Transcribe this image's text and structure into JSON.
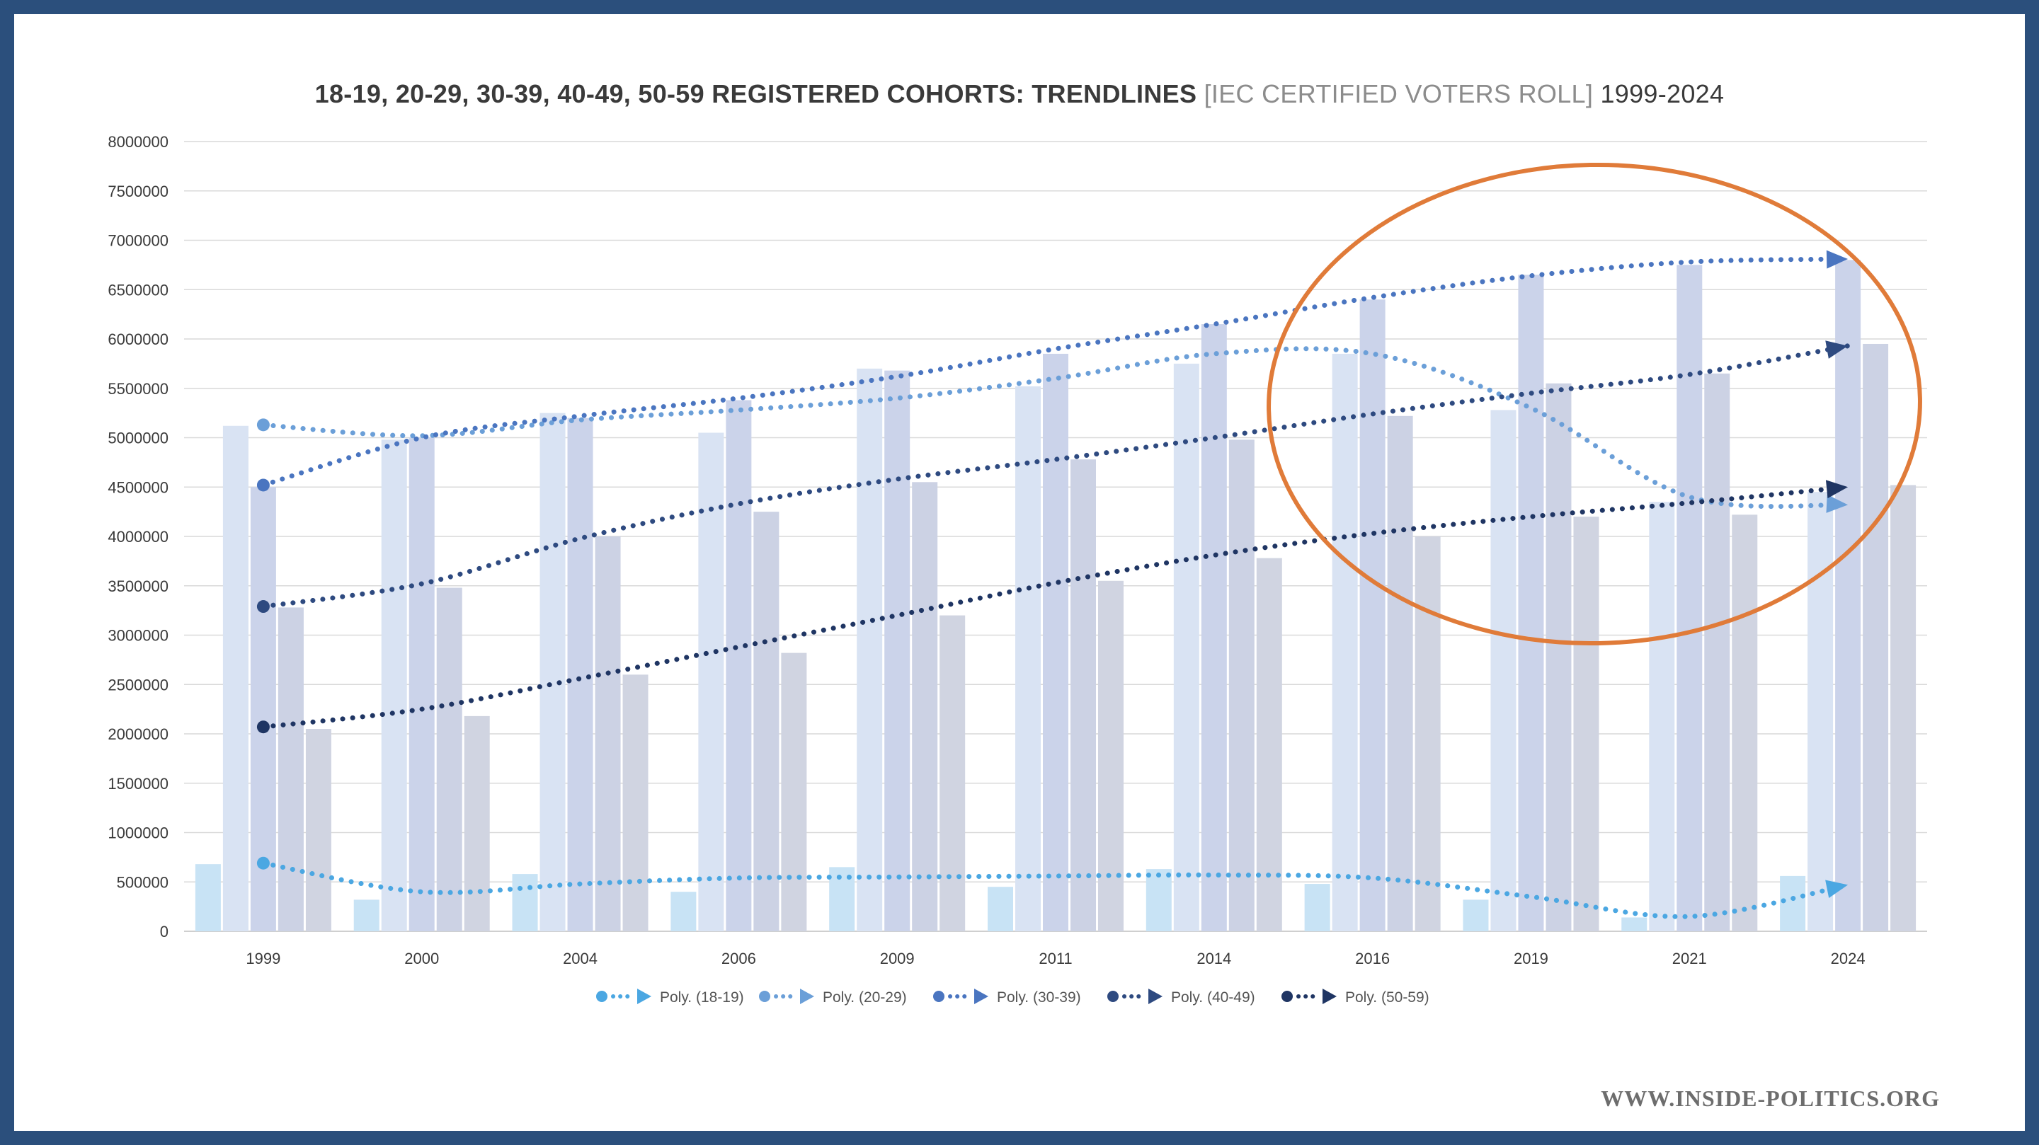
{
  "chart_data": {
    "type": "bar",
    "title": "18-19, 20-29, 30-39, 40-49, 50-59 REGISTERED COHORTS: TRENDLINES",
    "title_sub": "[IEC CERTIFIED VOTERS ROLL]",
    "title_tail": "1999-2024",
    "categories": [
      "1999",
      "2000",
      "2004",
      "2006",
      "2009",
      "2011",
      "2014",
      "2016",
      "2019",
      "2021",
      "2024"
    ],
    "ylim": [
      0,
      8000000
    ],
    "yticks": [
      "0",
      "500000",
      "1000000",
      "1500000",
      "2000000",
      "2500000",
      "3000000",
      "3500000",
      "4000000",
      "4500000",
      "5000000",
      "5500000",
      "6000000",
      "6500000",
      "7000000",
      "7500000",
      "8000000"
    ],
    "grid": true,
    "legend_position": "bottom",
    "series": [
      {
        "key": "18-19",
        "values": [
          680000,
          320000,
          580000,
          400000,
          650000,
          450000,
          630000,
          480000,
          320000,
          140000,
          560000
        ],
        "color": "#c8e3f5"
      },
      {
        "key": "20-29",
        "values": [
          5120000,
          4980000,
          5250000,
          5050000,
          5700000,
          5520000,
          5750000,
          5850000,
          5280000,
          4350000,
          4450000
        ],
        "color": "#d9e3f3"
      },
      {
        "key": "30-39",
        "values": [
          4500000,
          5000000,
          5200000,
          5380000,
          5680000,
          5850000,
          6150000,
          6400000,
          6650000,
          6750000,
          6800000
        ],
        "color": "#cbd3ea"
      },
      {
        "key": "40-49",
        "values": [
          3280000,
          3480000,
          4000000,
          4250000,
          4550000,
          4780000,
          4980000,
          5220000,
          5550000,
          5650000,
          5950000
        ],
        "color": "#ccd2e4"
      },
      {
        "key": "50-59",
        "values": [
          2050000,
          2180000,
          2600000,
          2820000,
          3200000,
          3550000,
          3780000,
          4000000,
          4200000,
          4220000,
          4520000
        ],
        "color": "#d0d4e1"
      }
    ],
    "trendlines": [
      {
        "name": "Poly. (18-19)",
        "color": "#4ba7e2",
        "values": [
          690000,
          400000,
          480000,
          540000,
          550000,
          560000,
          570000,
          540000,
          350000,
          150000,
          470000
        ]
      },
      {
        "name": "Poly. (20-29)",
        "color": "#6b9fd8",
        "values": [
          5130000,
          5020000,
          5180000,
          5280000,
          5400000,
          5600000,
          5850000,
          5850000,
          5300000,
          4400000,
          4320000
        ]
      },
      {
        "name": "Poly. (30-39)",
        "color": "#4a75c0",
        "values": [
          4520000,
          5000000,
          5220000,
          5400000,
          5620000,
          5900000,
          6150000,
          6420000,
          6640000,
          6780000,
          6810000
        ]
      },
      {
        "name": "Poly. (40-49)",
        "color": "#2e4a80",
        "values": [
          3290000,
          3520000,
          3980000,
          4330000,
          4580000,
          4780000,
          5000000,
          5240000,
          5450000,
          5640000,
          5930000
        ]
      },
      {
        "name": "Poly. (50-59)",
        "color": "#1f3563",
        "values": [
          2070000,
          2250000,
          2560000,
          2880000,
          3200000,
          3530000,
          3810000,
          4030000,
          4200000,
          4340000,
          4500000
        ]
      }
    ],
    "annotation": {
      "shape": "ellipse",
      "color": "#e07b39"
    }
  },
  "watermark": "WWW.INSIDE-POLITICS.ORG"
}
